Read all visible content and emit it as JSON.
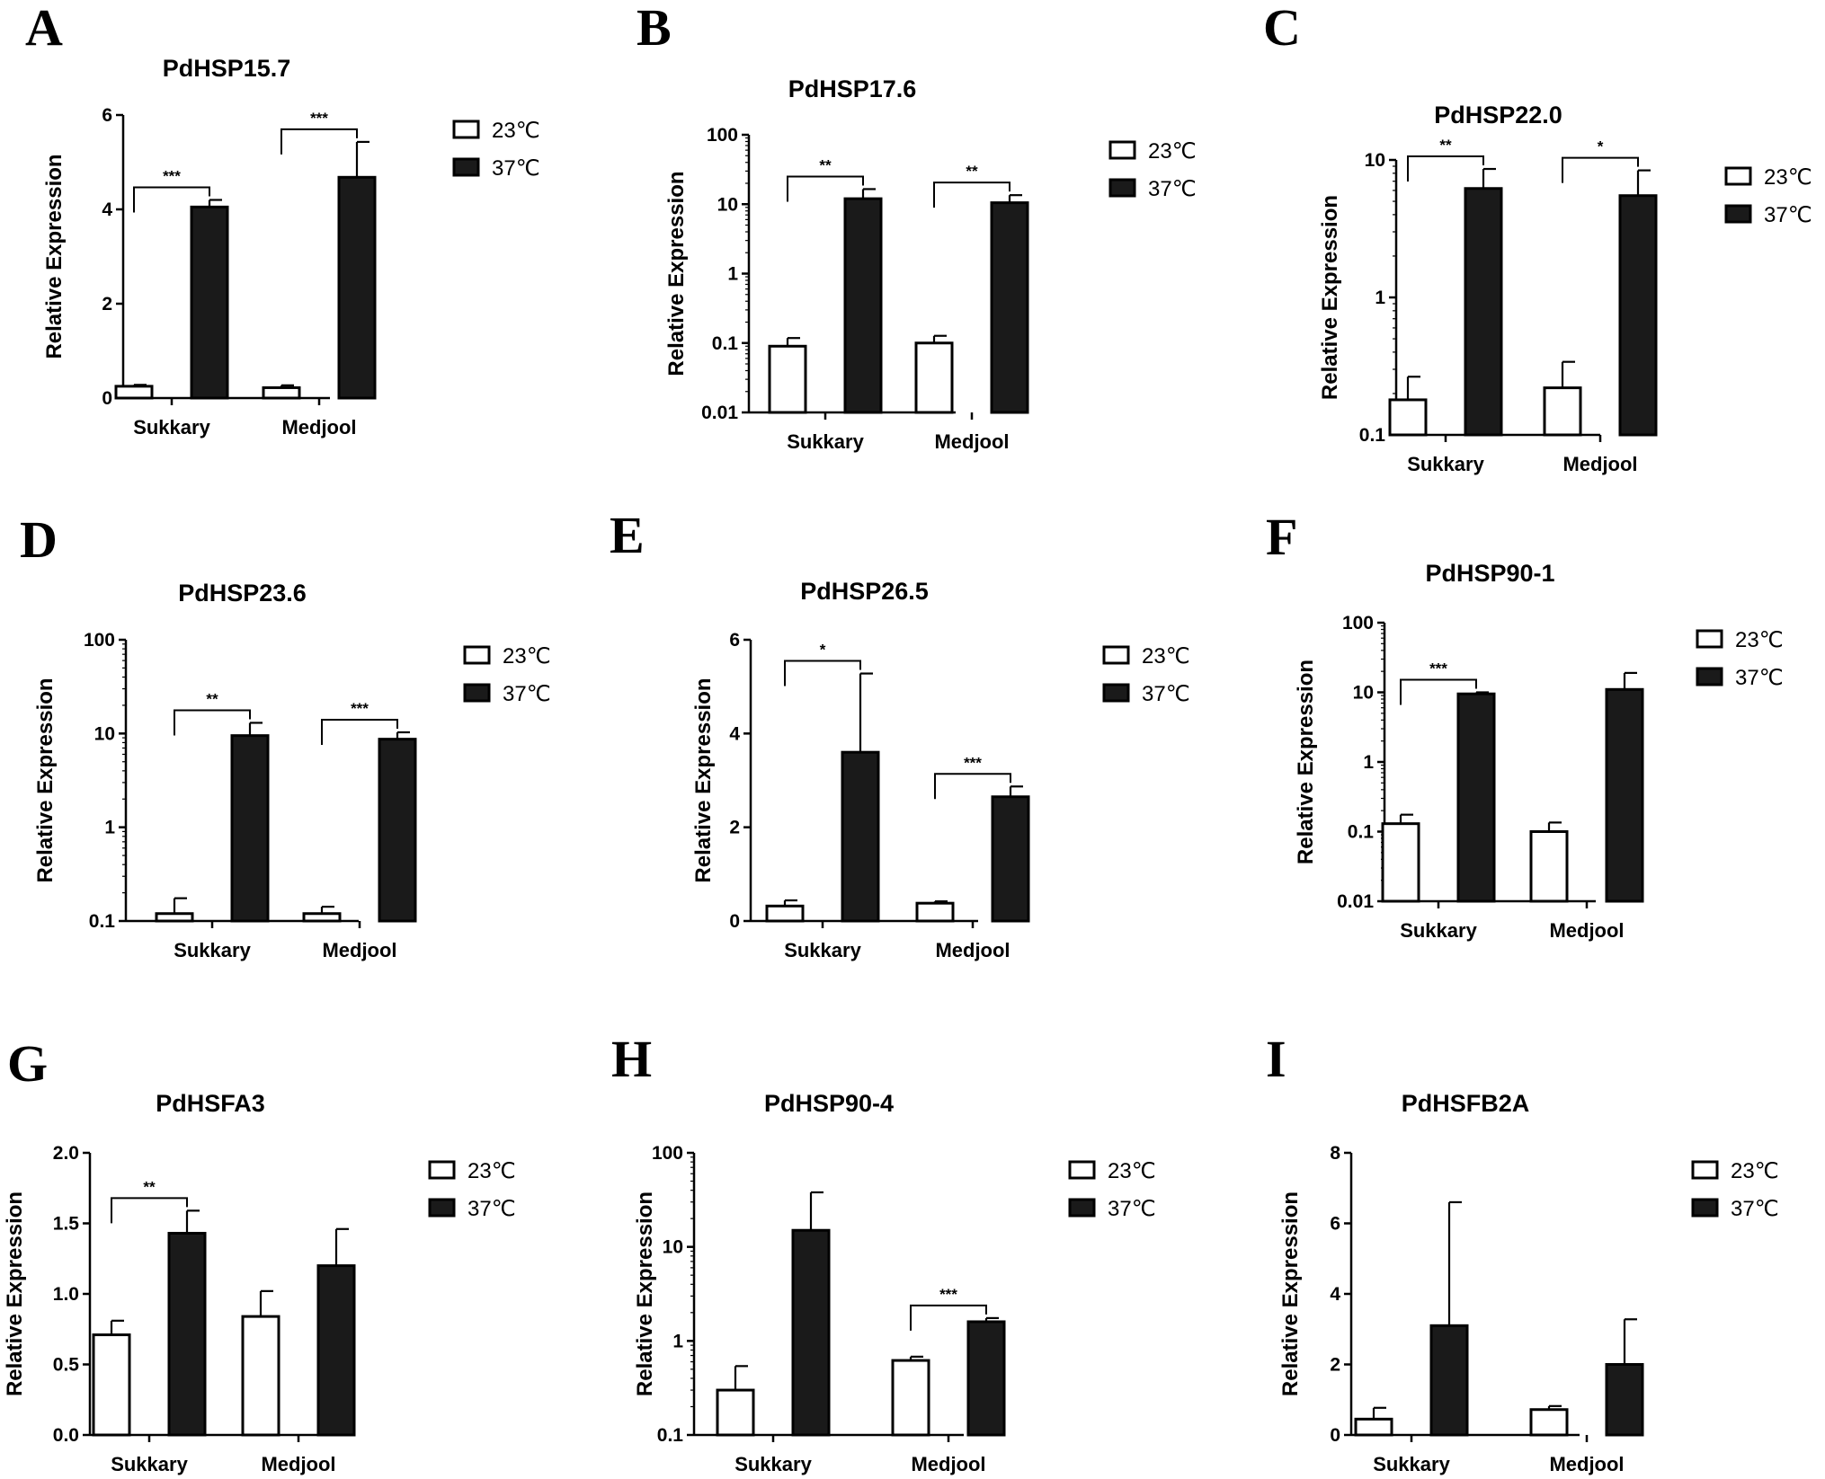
{
  "legend": {
    "low": "23℃",
    "high": "37℃"
  },
  "colors": {
    "low_fill": "#ffffff",
    "high_fill": "#1a1a1a",
    "stroke": "#000000"
  },
  "chart_data": [
    {
      "panel": "A",
      "type": "bar",
      "title": "PdHSP15.7",
      "ylabel": "Relative Expression",
      "xlabel": "",
      "scale": "linear",
      "ylim": [
        0,
        6
      ],
      "yticks": [
        "0",
        "2",
        "4",
        "6"
      ],
      "ytick_values": [
        0,
        2,
        4,
        6
      ],
      "categories": [
        "Sukkary",
        "Medjool"
      ],
      "series": [
        {
          "name": "23℃",
          "values": [
            0.25,
            0.22
          ],
          "errors": [
            0.03,
            0.05
          ]
        },
        {
          "name": "37℃",
          "values": [
            4.05,
            4.68
          ],
          "errors": [
            0.15,
            0.75
          ]
        }
      ],
      "significance": [
        "***",
        "***"
      ],
      "grid": false,
      "legend_position": "right"
    },
    {
      "panel": "B",
      "type": "bar",
      "title": "PdHSP17.6",
      "ylabel": "Relative Expression",
      "xlabel": "",
      "scale": "log",
      "ylim": [
        0.01,
        100
      ],
      "yticks": [
        "0.01",
        "0.1",
        "1",
        "10",
        "100"
      ],
      "ytick_values": [
        0.01,
        0.1,
        1,
        10,
        100
      ],
      "categories": [
        "Sukkary",
        "Medjool"
      ],
      "series": [
        {
          "name": "23℃",
          "values": [
            0.09,
            0.1
          ],
          "errors": [
            0.028,
            0.027
          ]
        },
        {
          "name": "37℃",
          "values": [
            12,
            10.5
          ],
          "errors": [
            4.5,
            3
          ]
        }
      ],
      "significance": [
        "**",
        "**"
      ],
      "grid": false,
      "legend_position": "right"
    },
    {
      "panel": "C",
      "type": "bar",
      "title": "PdHSP22.0",
      "ylabel": "Relative Expression",
      "xlabel": "",
      "scale": "log",
      "ylim": [
        0.1,
        10
      ],
      "yticks": [
        "0.1",
        "1",
        "10"
      ],
      "ytick_values": [
        0.1,
        1,
        10
      ],
      "categories": [
        "Sukkary",
        "Medjool"
      ],
      "series": [
        {
          "name": "23℃",
          "values": [
            0.18,
            0.22
          ],
          "errors": [
            0.085,
            0.12
          ]
        },
        {
          "name": "37℃",
          "values": [
            6.2,
            5.5
          ],
          "errors": [
            2.4,
            2.9
          ]
        }
      ],
      "significance": [
        "**",
        "*"
      ],
      "grid": false,
      "legend_position": "right"
    },
    {
      "panel": "D",
      "type": "bar",
      "title": "PdHSP23.6",
      "ylabel": "Relative Expression",
      "xlabel": "",
      "scale": "log",
      "ylim": [
        0.1,
        100
      ],
      "yticks": [
        "0.1",
        "1",
        "10",
        "100"
      ],
      "ytick_values": [
        0.1,
        1,
        10,
        100
      ],
      "categories": [
        "Sukkary",
        "Medjool"
      ],
      "series": [
        {
          "name": "23℃",
          "values": [
            0.12,
            0.12
          ],
          "errors": [
            0.055,
            0.022
          ]
        },
        {
          "name": "37℃",
          "values": [
            9.5,
            8.7
          ],
          "errors": [
            3.5,
            1.6
          ]
        }
      ],
      "significance": [
        "**",
        "***"
      ],
      "grid": false,
      "legend_position": "right"
    },
    {
      "panel": "E",
      "type": "bar",
      "title": "PdHSP26.5",
      "ylabel": "Relative Expression",
      "xlabel": "",
      "scale": "linear",
      "ylim": [
        0,
        6
      ],
      "yticks": [
        "0",
        "2",
        "4",
        "6"
      ],
      "ytick_values": [
        0,
        2,
        4,
        6
      ],
      "categories": [
        "Sukkary",
        "Medjool"
      ],
      "series": [
        {
          "name": "23℃",
          "values": [
            0.32,
            0.38
          ],
          "errors": [
            0.12,
            0.04
          ]
        },
        {
          "name": "37℃",
          "values": [
            3.6,
            2.65
          ],
          "errors": [
            1.68,
            0.22
          ]
        }
      ],
      "significance": [
        "*",
        "***"
      ],
      "grid": false,
      "legend_position": "right"
    },
    {
      "panel": "F",
      "type": "bar",
      "title": "PdHSP90-1",
      "ylabel": "Relative Expression",
      "xlabel": "",
      "scale": "log",
      "ylim": [
        0.01,
        100
      ],
      "yticks": [
        "0.01",
        "0.1",
        "1",
        "10",
        "100"
      ],
      "ytick_values": [
        0.01,
        0.1,
        1,
        10,
        100
      ],
      "categories": [
        "Sukkary",
        "Medjool"
      ],
      "series": [
        {
          "name": "23℃",
          "values": [
            0.13,
            0.1
          ],
          "errors": [
            0.045,
            0.035
          ]
        },
        {
          "name": "37℃",
          "values": [
            9.5,
            11
          ],
          "errors": [
            0.5,
            8
          ]
        }
      ],
      "significance": [
        "***",
        ""
      ],
      "grid": false,
      "legend_position": "right"
    },
    {
      "panel": "G",
      "type": "bar",
      "title": "PdHSFA3",
      "ylabel": "Relative Expression",
      "xlabel": "",
      "scale": "linear",
      "ylim": [
        0,
        2
      ],
      "yticks": [
        "0.0",
        "0.5",
        "1.0",
        "1.5",
        "2.0"
      ],
      "ytick_values": [
        0,
        0.5,
        1,
        1.5,
        2
      ],
      "categories": [
        "Sukkary",
        "Medjool"
      ],
      "series": [
        {
          "name": "23℃",
          "values": [
            0.71,
            0.84
          ],
          "errors": [
            0.1,
            0.18
          ]
        },
        {
          "name": "37℃",
          "values": [
            1.43,
            1.2
          ],
          "errors": [
            0.16,
            0.26
          ]
        }
      ],
      "significance": [
        "**",
        ""
      ],
      "grid": false,
      "legend_position": "right"
    },
    {
      "panel": "H",
      "type": "bar",
      "title": "PdHSP90-4",
      "ylabel": "Relative Expression",
      "xlabel": "",
      "scale": "log",
      "ylim": [
        0.1,
        100
      ],
      "yticks": [
        "0.1",
        "1",
        "10",
        "100"
      ],
      "ytick_values": [
        0.1,
        1,
        10,
        100
      ],
      "categories": [
        "Sukkary",
        "Medjool"
      ],
      "series": [
        {
          "name": "23℃",
          "values": [
            0.3,
            0.62
          ],
          "errors": [
            0.24,
            0.06
          ]
        },
        {
          "name": "37℃",
          "values": [
            15,
            1.6
          ],
          "errors": [
            23,
            0.15
          ]
        }
      ],
      "significance": [
        "",
        "***"
      ],
      "grid": false,
      "legend_position": "right"
    },
    {
      "panel": "I",
      "type": "bar",
      "title": "PdHSFB2A",
      "ylabel": "Relative Expression",
      "xlabel": "",
      "scale": "linear",
      "ylim": [
        0,
        8
      ],
      "yticks": [
        "0",
        "2",
        "4",
        "6",
        "8"
      ],
      "ytick_values": [
        0,
        2,
        4,
        6,
        8
      ],
      "categories": [
        "Sukkary",
        "Medjool"
      ],
      "series": [
        {
          "name": "23℃",
          "values": [
            0.45,
            0.72
          ],
          "errors": [
            0.32,
            0.1
          ]
        },
        {
          "name": "37℃",
          "values": [
            3.1,
            2.0
          ],
          "errors": [
            3.5,
            1.28
          ]
        }
      ],
      "significance": [
        "",
        ""
      ],
      "grid": false,
      "legend_position": "right"
    }
  ]
}
